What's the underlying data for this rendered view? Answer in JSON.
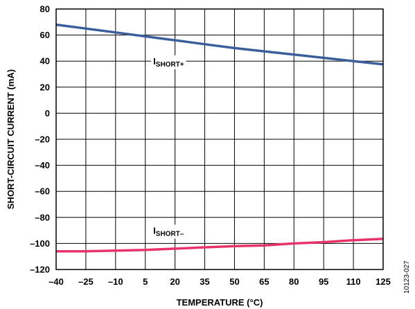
{
  "chart_data": {
    "type": "line",
    "xlabel": "TEMPERATURE (°C)",
    "ylabel": "SHORT-CIRCUIT CURRENT (mA)",
    "xlim": [
      -40,
      125
    ],
    "ylim": [
      -120,
      80
    ],
    "x_ticks": [
      -40,
      -25,
      -10,
      5,
      20,
      35,
      50,
      65,
      80,
      95,
      110,
      125
    ],
    "x_tick_labels": [
      "–40",
      "–25",
      "–10",
      "5",
      "20",
      "35",
      "50",
      "65",
      "80",
      "95",
      "110",
      "125"
    ],
    "y_ticks": [
      80,
      60,
      40,
      20,
      0,
      -20,
      -40,
      -60,
      -80,
      -100,
      -120
    ],
    "y_tick_labels": [
      "80",
      "60",
      "40",
      "20",
      "0",
      "–20",
      "–40",
      "–60",
      "–80",
      "–100",
      "–120"
    ],
    "grid": true,
    "series": [
      {
        "name_main": "I",
        "name_sub": "SHORT+",
        "color": "#3a5f9c",
        "x": [
          -40,
          -25,
          -10,
          5,
          20,
          35,
          50,
          65,
          80,
          95,
          110,
          125
        ],
        "y": [
          68,
          65,
          62,
          59,
          56,
          53,
          50,
          47.5,
          45,
          42.5,
          40,
          37.5
        ]
      },
      {
        "name_main": "I",
        "name_sub": "SHORT–",
        "color": "#e8336a",
        "x": [
          -40,
          -25,
          -10,
          5,
          20,
          35,
          50,
          65,
          80,
          95,
          110,
          125
        ],
        "y": [
          -106,
          -106,
          -105.5,
          -105,
          -104,
          -103,
          -102,
          -101.5,
          -100,
          -99,
          -97.5,
          -96.5
        ]
      }
    ],
    "figure_code": "10123-027"
  }
}
